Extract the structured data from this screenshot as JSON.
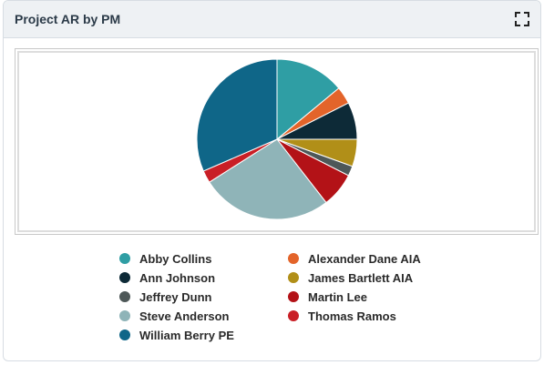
{
  "widget": {
    "title": "Project AR by PM",
    "expand_icon": "expand-icon"
  },
  "chart_data": {
    "type": "pie",
    "title": "",
    "slices": [
      {
        "name": "Abby Collins",
        "percent": 14.0,
        "color": "#2f9ea4"
      },
      {
        "name": "Alexander Dane AIA",
        "percent": 3.5,
        "color": "#e3642a"
      },
      {
        "name": "Ann Johnson",
        "percent": 7.5,
        "color": "#0d2a37"
      },
      {
        "name": "James Bartlett AIA",
        "percent": 5.5,
        "color": "#b18f18"
      },
      {
        "name": "Jeffrey Dunn",
        "percent": 2.0,
        "color": "#4e5858"
      },
      {
        "name": "Martin Lee",
        "percent": 7.0,
        "color": "#b31217"
      },
      {
        "name": "Steve Anderson",
        "percent": 26.5,
        "color": "#8fb4b8"
      },
      {
        "name": "Thomas Ramos",
        "percent": 2.5,
        "color": "#c91f26"
      },
      {
        "name": "William Berry PE",
        "percent": 31.5,
        "color": "#0f6688"
      }
    ],
    "legend": [
      {
        "name": "Abby Collins",
        "color": "#2f9ea4"
      },
      {
        "name": "Alexander Dane AIA",
        "color": "#e3642a"
      },
      {
        "name": "Ann Johnson",
        "color": "#0d2a37"
      },
      {
        "name": "James Bartlett AIA",
        "color": "#b18f18"
      },
      {
        "name": "Jeffrey Dunn",
        "color": "#4e5858"
      },
      {
        "name": "Martin Lee",
        "color": "#b31217"
      },
      {
        "name": "Steve Anderson",
        "color": "#8fb4b8"
      },
      {
        "name": "Thomas Ramos",
        "color": "#c91f26"
      },
      {
        "name": "William Berry PE",
        "color": "#0f6688"
      }
    ],
    "legend_placement": "bottom"
  }
}
